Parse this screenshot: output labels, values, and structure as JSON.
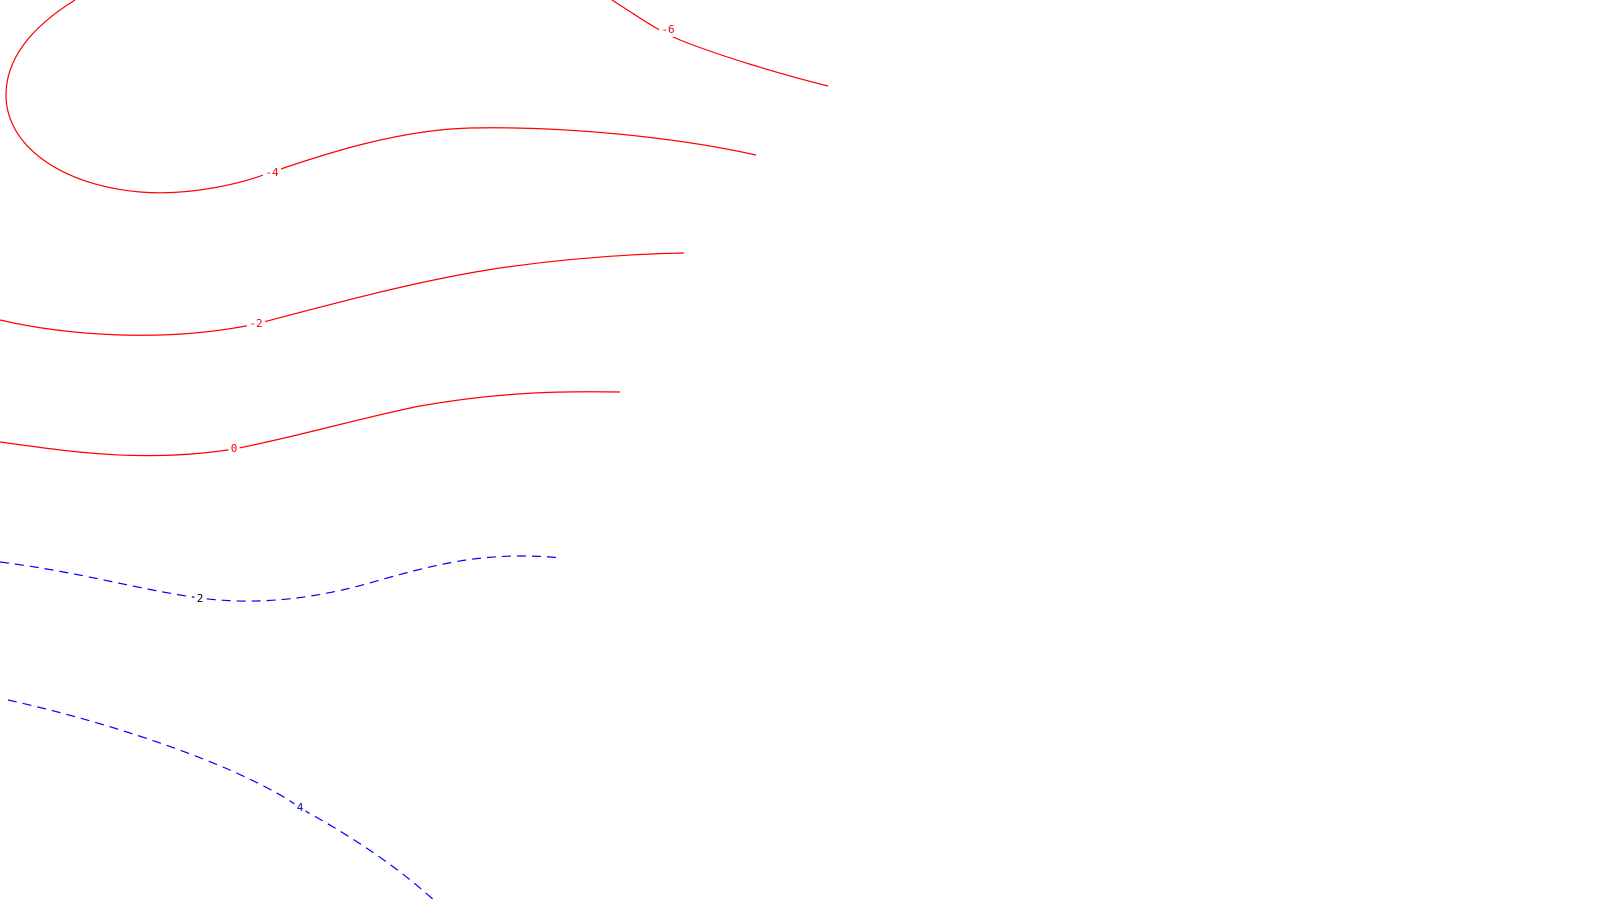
{
  "chart_data": {
    "type": "contour",
    "title": "",
    "xlabel": "",
    "ylabel": "",
    "grid": false,
    "legend": "none",
    "colors": {
      "negative": "#ff0000",
      "positive": "#0000ff",
      "background": "#ffffff"
    },
    "styles": {
      "negative": "solid",
      "positive": "dashed"
    },
    "levels": [
      {
        "value": -6,
        "label": "-6",
        "sign": "negative",
        "label_color": "#ff0000"
      },
      {
        "value": -4,
        "label": "-4",
        "sign": "negative",
        "label_color": "#ff0000"
      },
      {
        "value": -2,
        "label": "-2",
        "sign": "negative",
        "label_color": "#ff0000"
      },
      {
        "value": 0,
        "label": "0",
        "sign": "negative",
        "label_color": "#ff0000"
      },
      {
        "value": 2,
        "label": "2",
        "sign": "positive",
        "label_color": "#000000"
      },
      {
        "value": 4,
        "label": "4",
        "sign": "positive",
        "label_color": "#0000cc"
      }
    ]
  }
}
